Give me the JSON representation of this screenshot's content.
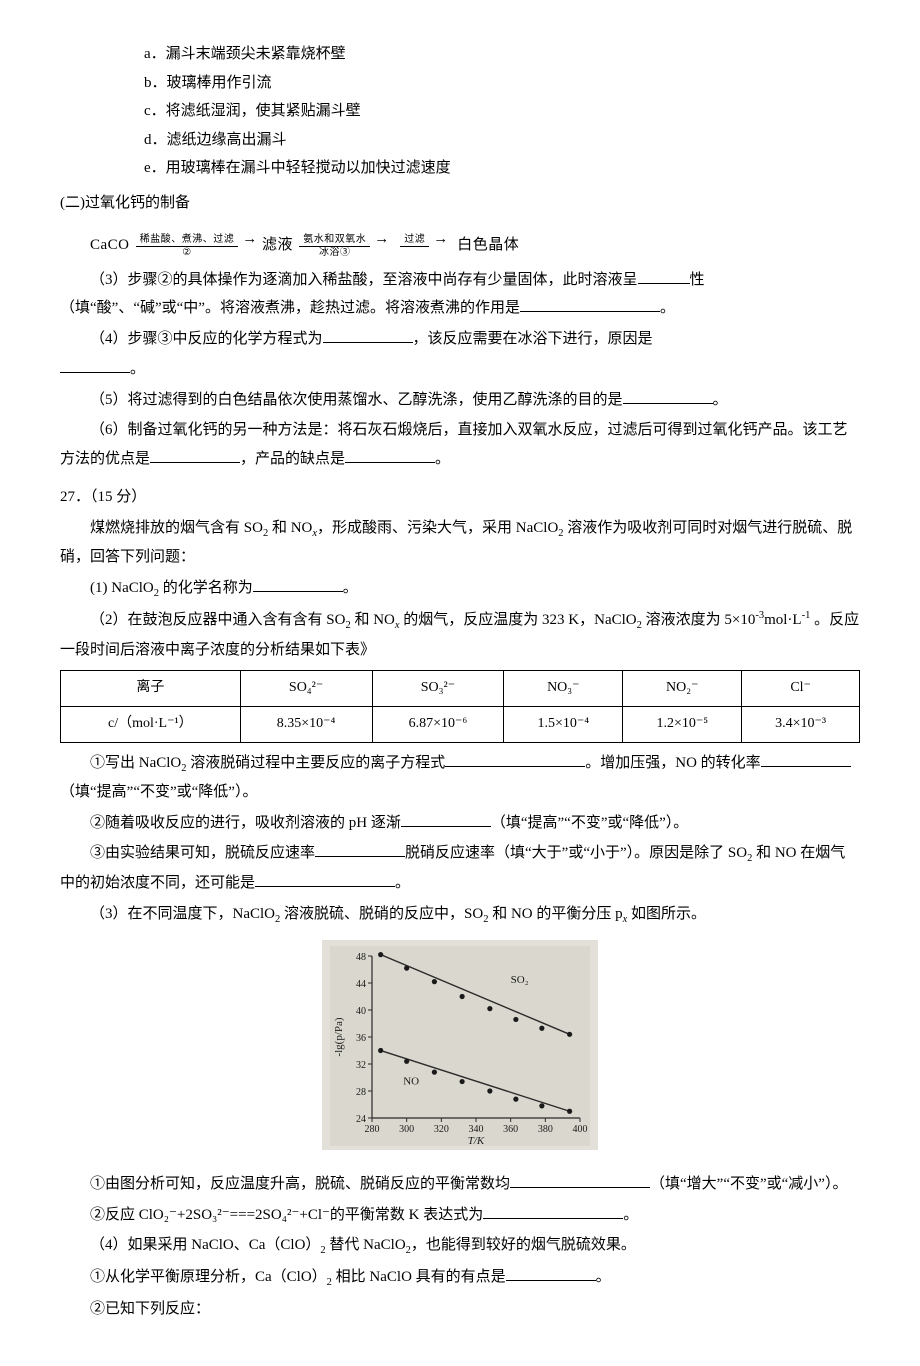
{
  "letters": {
    "a": "a．漏斗末端颈尖未紧靠烧杯壁",
    "b": "b．玻璃棒用作引流",
    "c": "c．将滤纸湿润，使其紧贴漏斗壁",
    "d": "d．滤纸边缘高出漏斗",
    "e": "e．用玻璃棒在漏斗中轻轻搅动以加快过滤速度"
  },
  "sectionII": "(二)过氧化钙的制备",
  "flow": {
    "start": "CaCO",
    "step2_top": "稀盐酸、煮沸、过滤",
    "step2_bot": "②",
    "mid1": "滤液",
    "step3_top": "氨水和双氧水",
    "step3_bot": "冰浴③",
    "step4_top": "过滤",
    "end": "白色晶体"
  },
  "q3a": "（3）步骤②的具体操作为逐滴加入稀盐酸，至溶液中尚存有少量固体，此时溶液呈",
  "q3b": "性（填“酸”、“碱”或“中”。将溶液煮沸，趁热过滤。将溶液煮沸的作用是",
  "q3c": "。",
  "q4a": "（4）步骤③中反应的化学方程式为",
  "q4b": "，该反应需要在冰浴下进行，原因是",
  "q4c": "。",
  "q5a": "（5）将过滤得到的白色结晶依次使用蒸馏水、乙醇洗涤，使用乙醇洗涤的目的是",
  "q5b": "。",
  "q6a": "（6）制备过氧化钙的另一种方法是：将石灰石煅烧后，直接加入双氧水反应，过滤后可得到过氧化钙产品。该工艺方法的优点是",
  "q6b": "，产品的缺点是",
  "q6c": "。",
  "q27num": "27．（15 分）",
  "q27intro1": "煤燃烧排放的烟气含有 SO",
  "q27intro2": " 和 NO",
  "q27intro3": "，形成酸雨、污染大气，采用 NaClO",
  "q27intro4": " 溶液作为吸收剂可同时对烟气进行脱硫、脱硝，回答下列问题：",
  "q27_1a": "(1) NaClO",
  "q27_1b": " 的化学名称为",
  "q27_1c": "。",
  "q27_2a": "（2）在鼓泡反应器中通入含有含有 SO",
  "q27_2b": " 和 NO",
  "q27_2c": " 的烟气，反应温度为 323 K，NaClO",
  "q27_2d": " 溶液浓度为 5×10",
  "q27_2e": "mol·L",
  "q27_2f": " 。反应一段时间后溶液中离子浓度的分析结果如下表》",
  "table": {
    "header": [
      "离子",
      "SO₄²⁻",
      "SO₃²⁻",
      "NO₃⁻",
      "NO₂⁻",
      "Cl⁻"
    ],
    "rowlabel": "c/（mol·L⁻¹）",
    "row": [
      "8.35×10⁻⁴",
      "6.87×10⁻⁶",
      "1.5×10⁻⁴",
      "1.2×10⁻⁵",
      "3.4×10⁻³"
    ]
  },
  "q27_2_1a": "①写出 NaClO",
  "q27_2_1b": " 溶液脱硝过程中主要反应的离子方程式",
  "q27_2_1c": "。增加压强，NO 的转化率",
  "q27_2_1d": "（填“提高”“不变”或“降低”）。",
  "q27_2_2a": "②随着吸收反应的进行，吸收剂溶液的 pH 逐渐",
  "q27_2_2b": "（填“提高”“不变”或“降低”）。",
  "q27_2_3a": "③由实验结果可知，脱硫反应速率",
  "q27_2_3b": "脱硝反应速率（填“大于”或“小于”）。原因是除了 SO",
  "q27_2_3c": " 和 NO 在烟气中的初始浓度不同，还可能是",
  "q27_2_3d": "。",
  "q27_3a": "（3）在不同温度下，NaClO",
  "q27_3b": " 溶液脱硫、脱硝的反应中，SO",
  "q27_3c": " 和 NO 的平衡分压 p",
  "q27_3d": " 如图所示。",
  "chart": {
    "bg": "#d9d7ce",
    "axis_color": "#2a2a2a",
    "tick_color": "#2a2a2a",
    "point_color": "#1a1a1a",
    "line_color": "#2a2a2a",
    "font_color": "#1a1a1a",
    "x_min": 280,
    "x_max": 400,
    "y_min": 24,
    "y_max": 48,
    "x_ticks": [
      280,
      300,
      320,
      340,
      360,
      380,
      400
    ],
    "y_ticks": [
      24,
      28,
      32,
      36,
      40,
      44,
      48
    ],
    "x_label": "T/K",
    "y_label": "-lg(p/Pa)",
    "label_so2": "SO₂",
    "label_no": "NO",
    "series_so2": [
      [
        285,
        48.2
      ],
      [
        300,
        46.2
      ],
      [
        316,
        44.2
      ],
      [
        332,
        42.0
      ],
      [
        348,
        40.2
      ],
      [
        363,
        38.6
      ],
      [
        378,
        37.3
      ],
      [
        394,
        36.4
      ]
    ],
    "series_no": [
      [
        285,
        34.0
      ],
      [
        300,
        32.4
      ],
      [
        316,
        30.8
      ],
      [
        332,
        29.4
      ],
      [
        348,
        28.0
      ],
      [
        363,
        26.8
      ],
      [
        378,
        25.8
      ],
      [
        394,
        25.0
      ]
    ]
  },
  "q27_3_1a": "①由图分析可知，反应温度升高，脱硫、脱硝反应的平衡常数均",
  "q27_3_1b": "（填“增大”“不变”或“减小”）。",
  "q27_3_2a": "②反应 ClO₂⁻+2SO₃²⁻===2SO₄²⁻+Cl⁻的平衡常数 K 表达式为",
  "q27_3_2b": "。",
  "q27_4a": "（4）如果采用 NaClO、Ca（ClO）",
  "q27_4b": " 替代 NaClO",
  "q27_4c": "，也能得到较好的烟气脱硫效果。",
  "q27_4_1a": "①从化学平衡原理分析，Ca（ClO）",
  "q27_4_1b": " 相比 NaClO 具有的有点是",
  "q27_4_1c": "。",
  "q27_4_2": "②已知下列反应："
}
